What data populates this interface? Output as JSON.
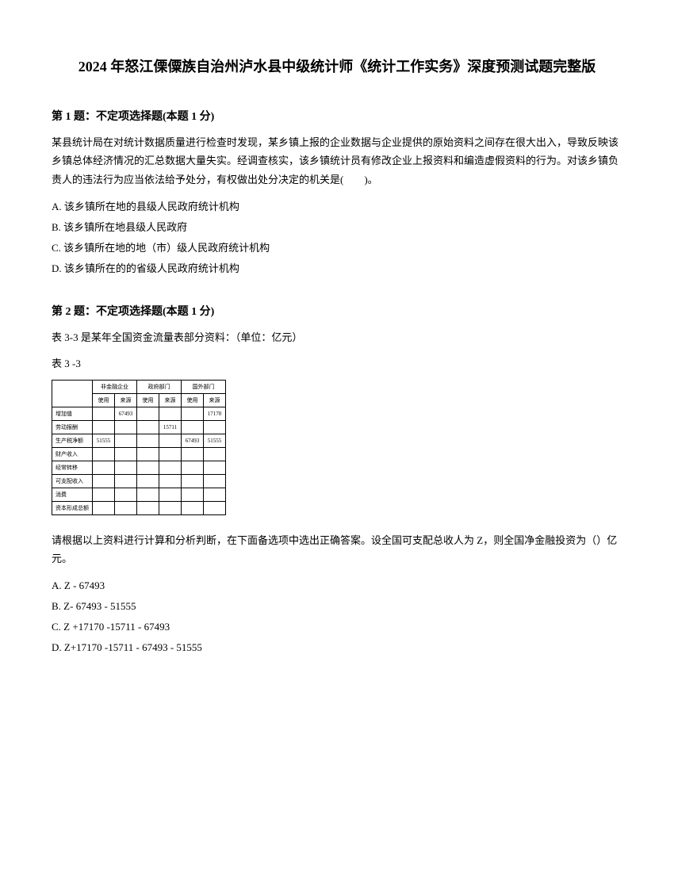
{
  "title": "2024 年怒江傈僳族自治州泸水县中级统计师《统计工作实务》深度预测试题完整版",
  "question1": {
    "header": "第 1 题：不定项选择题(本题 1 分)",
    "text": "某县统计局在对统计数据质量进行检查时发现，某乡镇上报的企业数据与企业提供的原始资料之间存在很大出入，导致反映该乡镇总体经济情况的汇总数据大量失实。经调查核实，该乡镇统计员有修改企业上报资料和编造虚假资料的行为。对该乡镇负责人的违法行为应当依法给予处分，有权做出处分决定的机关是(　　)。",
    "optionA": "A. 该乡镇所在地的县级人民政府统计机构",
    "optionB": "B. 该乡镇所在地县级人民政府",
    "optionC": "C. 该乡镇所在地的地（市）级人民政府统计机构",
    "optionD": "D. 该乡镇所在的的省级人民政府统计机构"
  },
  "question2": {
    "header": "第 2 题：不定项选择题(本题 1 分)",
    "text1": "表 3-3 是某年全国资金流量表部分资料：（单位：亿元）",
    "text2": "表 3 -3",
    "text3": "请根据以上资料进行计算和分析判断，在下面备选项中选出正确答案。设全国可支配总收人为 Z，则全国净金融投资为（）亿元。",
    "optionA": "A. Z - 67493",
    "optionB": "B. Z- 67493 - 51555",
    "optionC": "C. Z +17170 -15711 - 67493",
    "optionD": "D. Z+17170 -15711 - 67493 - 51555"
  },
  "table": {
    "header_col1": "非金融企业",
    "header_col2": "政府部门",
    "header_col3": "国外部门",
    "sub_h1": "使用",
    "sub_h2": "来源",
    "sub_h3": "使用",
    "sub_h4": "来源",
    "sub_h5": "使用",
    "sub_h6": "来源",
    "rows": [
      {
        "label": "增加值",
        "c1": "",
        "c2": "67493",
        "c3": "",
        "c4": "",
        "c5": "",
        "c6": "17170"
      },
      {
        "label": "劳动报酬",
        "c1": "",
        "c2": "",
        "c3": "",
        "c4": "15711",
        "c5": "",
        "c6": ""
      },
      {
        "label": "生产税净额",
        "c1": "51555",
        "c2": "",
        "c3": "",
        "c4": "",
        "c5": "67493",
        "c6": "51555"
      },
      {
        "label": "财产收入",
        "c1": "",
        "c2": "",
        "c3": "",
        "c4": "",
        "c5": "",
        "c6": ""
      },
      {
        "label": "经常转移",
        "c1": "",
        "c2": "",
        "c3": "",
        "c4": "",
        "c5": "",
        "c6": ""
      },
      {
        "label": "可支配收入",
        "c1": "",
        "c2": "",
        "c3": "",
        "c4": "",
        "c5": "",
        "c6": ""
      },
      {
        "label": "消费",
        "c1": "",
        "c2": "",
        "c3": "",
        "c4": "",
        "c5": "",
        "c6": ""
      },
      {
        "label": "资本形成总额",
        "c1": "",
        "c2": "",
        "c3": "",
        "c4": "",
        "c5": "",
        "c6": ""
      }
    ]
  }
}
